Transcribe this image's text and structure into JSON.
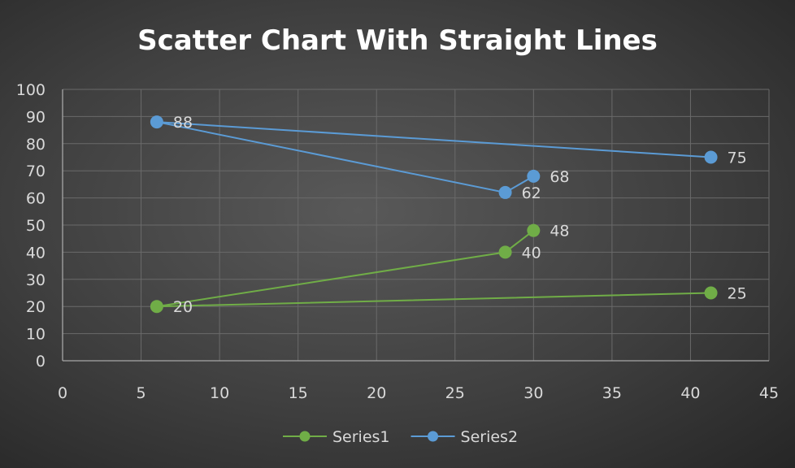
{
  "chart_data": {
    "type": "scatter",
    "title": "Scatter Chart With Straight Lines",
    "xlim": [
      0,
      45
    ],
    "ylim": [
      0,
      100
    ],
    "x_ticks": [
      0,
      5,
      10,
      15,
      20,
      25,
      30,
      35,
      40,
      45
    ],
    "y_ticks": [
      0,
      10,
      20,
      30,
      40,
      50,
      60,
      70,
      80,
      90,
      100
    ],
    "grid": true,
    "legend_position": "bottom",
    "series": [
      {
        "name": "Series1",
        "color": "#70ad47",
        "points": [
          {
            "x": 41.3,
            "y": 25
          },
          {
            "x": 6,
            "y": 20
          },
          {
            "x": 28.2,
            "y": 40
          },
          {
            "x": 30,
            "y": 48
          }
        ]
      },
      {
        "name": "Series2",
        "color": "#5b9bd5",
        "points": [
          {
            "x": 41.3,
            "y": 75
          },
          {
            "x": 6,
            "y": 88
          },
          {
            "x": 28.2,
            "y": 62
          },
          {
            "x": 30,
            "y": 68
          }
        ]
      }
    ]
  }
}
